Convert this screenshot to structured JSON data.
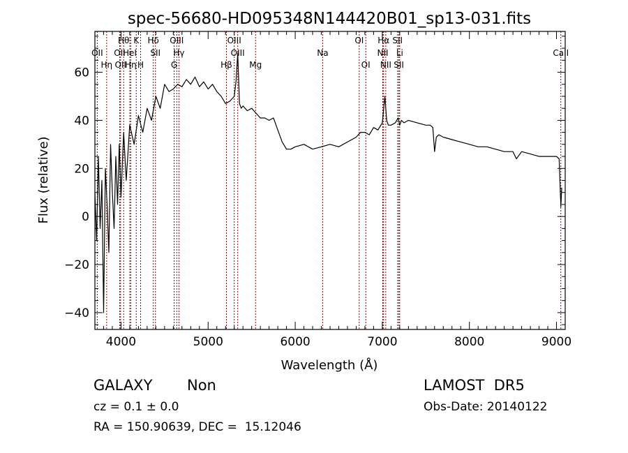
{
  "chart_data": {
    "type": "line",
    "title": "spec-56680-HD095348N144420B01_sp13-031.fits",
    "xlabel": "Wavelength (Å)",
    "ylabel": "Flux (relative)",
    "xlim": [
      3700,
      9100
    ],
    "ylim": [
      -47,
      77
    ],
    "xticks": [
      4000,
      5000,
      6000,
      7000,
      8000,
      9000
    ],
    "yticks": [
      -40,
      -20,
      0,
      20,
      40,
      60
    ],
    "grid": false,
    "line_color": "#000000",
    "marker_color": "#8b0000",
    "spectrum": {
      "x": [
        3700,
        3720,
        3740,
        3760,
        3780,
        3800,
        3820,
        3840,
        3860,
        3880,
        3900,
        3920,
        3940,
        3960,
        3980,
        4000,
        4030,
        4060,
        4100,
        4150,
        4200,
        4250,
        4300,
        4350,
        4400,
        4450,
        4500,
        4550,
        4600,
        4650,
        4700,
        4750,
        4800,
        4850,
        4900,
        4950,
        5000,
        5050,
        5100,
        5150,
        5200,
        5250,
        5300,
        5320,
        5340,
        5360,
        5380,
        5400,
        5450,
        5500,
        5550,
        5600,
        5650,
        5700,
        5750,
        5800,
        5850,
        5900,
        5950,
        6000,
        6100,
        6200,
        6300,
        6400,
        6500,
        6600,
        6700,
        6750,
        6800,
        6850,
        6900,
        6950,
        7000,
        7030,
        7050,
        7070,
        7100,
        7150,
        7180,
        7200,
        7220,
        7250,
        7300,
        7400,
        7500,
        7550,
        7580,
        7600,
        7620,
        7650,
        7700,
        7800,
        7900,
        8000,
        8100,
        8200,
        8300,
        8400,
        8500,
        8540,
        8600,
        8700,
        8800,
        8900,
        9000,
        9030,
        9050,
        9060
      ],
      "y": [
        10,
        -10,
        25,
        -5,
        15,
        -40,
        20,
        5,
        -15,
        30,
        10,
        -5,
        25,
        5,
        30,
        8,
        35,
        15,
        38,
        30,
        42,
        35,
        45,
        40,
        50,
        45,
        55,
        52,
        53,
        55,
        54,
        57,
        55,
        58,
        54,
        56,
        53,
        55,
        52,
        50,
        47,
        48,
        50,
        56,
        68,
        47,
        45,
        46,
        44,
        45,
        43,
        41,
        41,
        40,
        41,
        36,
        31,
        28,
        28,
        29,
        30,
        28,
        29,
        30,
        29,
        31,
        33,
        35,
        35,
        34,
        37,
        36,
        39,
        50,
        40,
        38,
        38,
        39,
        41,
        38,
        40,
        39,
        40,
        39,
        38,
        38,
        37,
        27,
        33,
        34,
        33,
        32,
        31,
        30,
        29,
        29,
        28,
        27,
        27,
        24,
        27,
        26,
        25,
        25,
        25,
        24,
        4,
        12
      ]
    },
    "lines": [
      {
        "label": "OII",
        "x": 3727,
        "row": 2
      },
      {
        "label": "Hη",
        "x": 3835,
        "row": 3
      },
      {
        "label": "OII",
        "x": 3985,
        "row": 2
      },
      {
        "label": "OII",
        "x": 3995,
        "row": 3
      },
      {
        "label": "Hθ",
        "x": 4030,
        "row": 1
      },
      {
        "label": "HeI",
        "x": 4100,
        "row": 2
      },
      {
        "label": "Hη",
        "x": 4112,
        "row": 3
      },
      {
        "label": "K",
        "x": 4175,
        "row": 1
      },
      {
        "label": "H",
        "x": 4225,
        "row": 3
      },
      {
        "label": "Hδ",
        "x": 4370,
        "row": 1
      },
      {
        "label": "SII",
        "x": 4395,
        "row": 2
      },
      {
        "label": "G",
        "x": 4610,
        "row": 3
      },
      {
        "label": "OIII",
        "x": 4640,
        "row": 1
      },
      {
        "label": "Hγ",
        "x": 4665,
        "row": 2
      },
      {
        "label": "Hβ",
        "x": 5210,
        "row": 3
      },
      {
        "label": "OIII",
        "x": 5300,
        "row": 1
      },
      {
        "label": "OIII",
        "x": 5340,
        "row": 2
      },
      {
        "label": "Mg",
        "x": 5545,
        "row": 3
      },
      {
        "label": "Na",
        "x": 6315,
        "row": 2
      },
      {
        "label": "OI",
        "x": 6735,
        "row": 1
      },
      {
        "label": "OI",
        "x": 6810,
        "row": 3
      },
      {
        "label": "Hα",
        "x": 7015,
        "row": 1
      },
      {
        "label": "NII",
        "x": 7005,
        "row": 2
      },
      {
        "label": "NII",
        "x": 7040,
        "row": 3
      },
      {
        "label": "SII",
        "x": 7175,
        "row": 1
      },
      {
        "label": "Li",
        "x": 7200,
        "row": 2
      },
      {
        "label": "SII",
        "x": 7190,
        "row": 3
      },
      {
        "label": "CaII",
        "x": 9050,
        "row": 2
      }
    ]
  },
  "info": {
    "class": "GALAXY",
    "subclass": "Non",
    "survey": "LAMOST  DR5",
    "cz": "cz = 0.1 ± 0.0",
    "obs_date": "Obs-Date: 20140122",
    "coords": "RA = 150.90639, DEC =  15.12046"
  }
}
